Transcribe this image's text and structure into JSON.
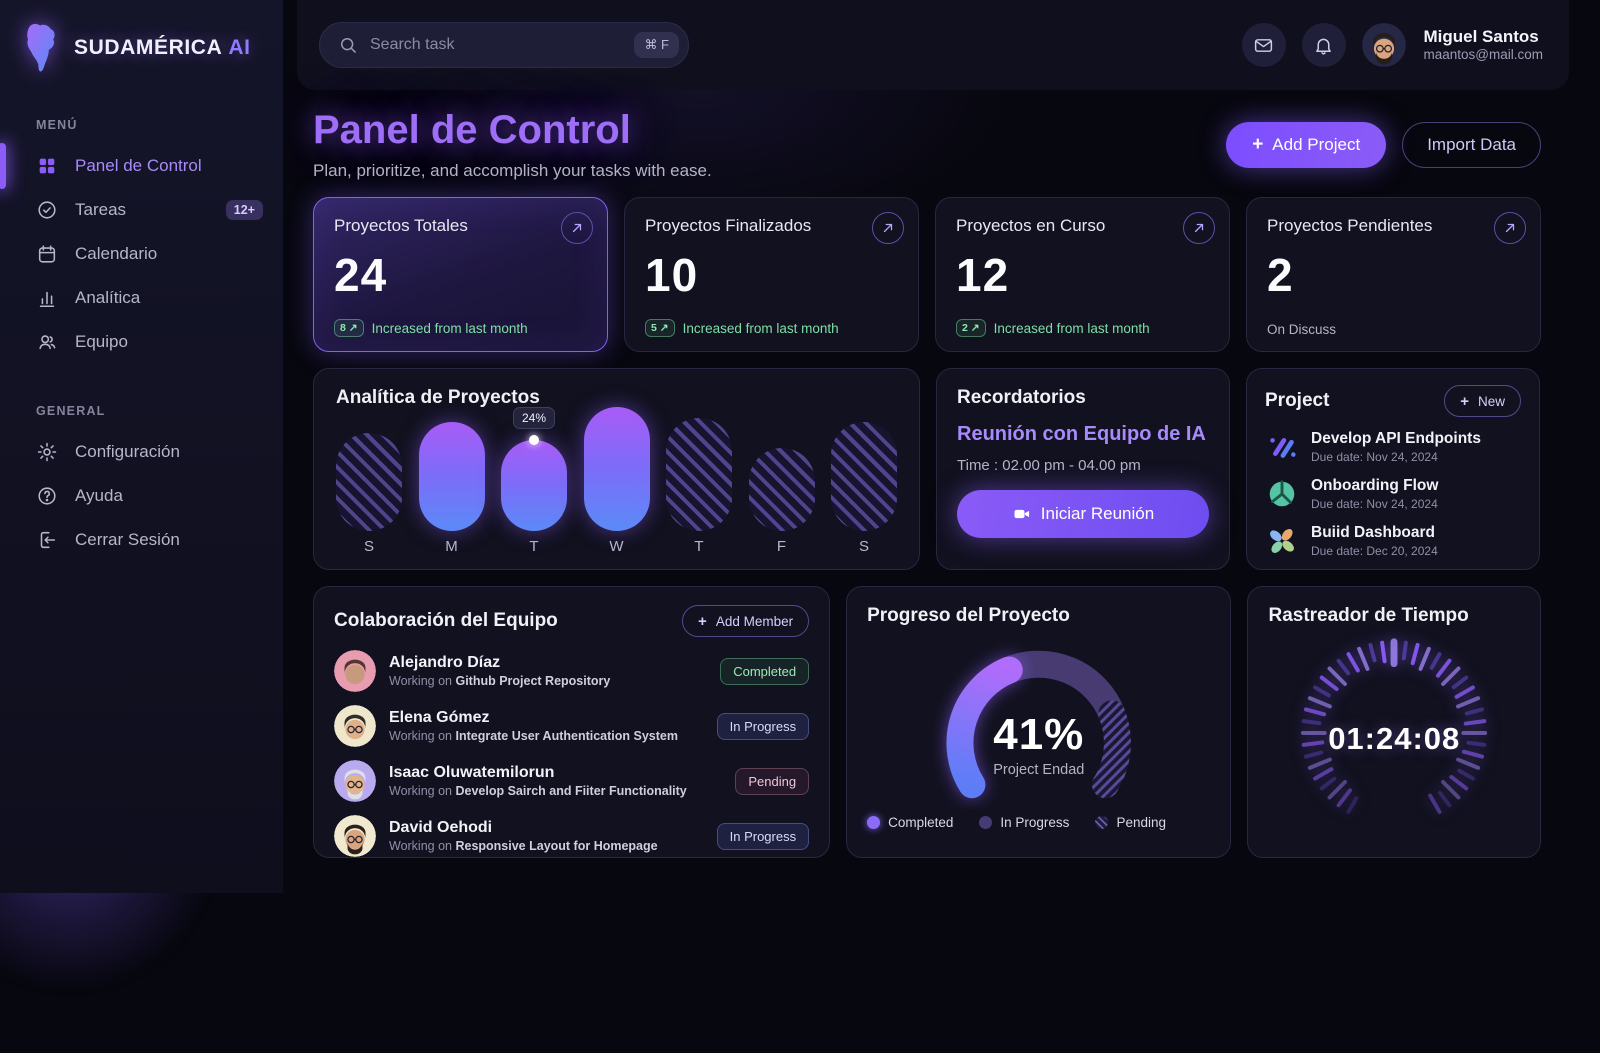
{
  "brand": {
    "name": "SUDAMÉRICA",
    "suffix": "AI"
  },
  "sidebar": {
    "menu_label": "MENÚ",
    "general_label": "GENERAL",
    "items": [
      {
        "label": "Panel de Control",
        "icon": "grid-icon",
        "active": true
      },
      {
        "label": "Tareas",
        "icon": "tasks-icon",
        "badge": "12+"
      },
      {
        "label": "Calendario",
        "icon": "calendar-icon"
      },
      {
        "label": "Analítica",
        "icon": "chart-icon"
      },
      {
        "label": "Equipo",
        "icon": "users-icon"
      }
    ],
    "general_items": [
      {
        "label": "Configuración",
        "icon": "gear-icon"
      },
      {
        "label": "Ayuda",
        "icon": "help-icon"
      },
      {
        "label": "Cerrar Sesión",
        "icon": "logout-icon"
      }
    ]
  },
  "topbar": {
    "search_placeholder": "Search task",
    "shortcut": "⌘ F",
    "user_name": "Miguel Santos",
    "user_email": "maantos@mail.com",
    "avatar": {
      "bg": "#262645",
      "skin": "#d9a47e",
      "hair": "#241d18",
      "beard": true,
      "glasses": true
    }
  },
  "header": {
    "title": "Panel de Control",
    "subtitle": "Plan, prioritize, and accomplish your tasks with ease.",
    "add_project": "Add Project",
    "import_data": "Import Data"
  },
  "stats": [
    {
      "title": "Proyectos Totales",
      "value": "24",
      "badge": "8 ↗",
      "note": "Increased from last month"
    },
    {
      "title": "Proyectos Finalizados",
      "value": "10",
      "badge": "5 ↗",
      "note": "Increased from last month"
    },
    {
      "title": "Proyectos en Curso",
      "value": "12",
      "badge": "2 ↗",
      "note": "Increased from last month"
    },
    {
      "title": "Proyectos Pendientes",
      "value": "2",
      "note": "On Discuss"
    }
  ],
  "analytics": {
    "title": "Analítica de Proyectos"
  },
  "reminders": {
    "title": "Recordatorios",
    "meeting": "Reunión con Equipo de IA",
    "time": "Time : 02.00 pm - 04.00 pm",
    "button": "Iniciar Reunión"
  },
  "projects": {
    "title": "Project",
    "new_button": "New",
    "items": [
      {
        "name": "Develop API Endpoints",
        "due": "Due date: Nov 24, 2024"
      },
      {
        "name": "Onboarding Flow",
        "due": "Due date: Nov 24, 2024"
      },
      {
        "name": "Buiid Dashboard",
        "due": "Due date: Dec 20, 2024"
      }
    ]
  },
  "team": {
    "title": "Colaboración del Equipo",
    "add_button": "Add Member",
    "working_prefix": "Working on ",
    "members": [
      {
        "name": "Alejandro Díaz",
        "task": "Github Project Repository",
        "status": "Completed",
        "avatar": {
          "bg": "#e89cb0",
          "skin": "#c79a7d",
          "hair": "#53382b",
          "beard": false,
          "glasses": false
        }
      },
      {
        "name": "Elena Gómez",
        "task": "Integrate User Authentication System",
        "status": "In Progress",
        "avatar": {
          "bg": "#efe7cc",
          "skin": "#e0b088",
          "hair": "#332d28",
          "beard": false,
          "glasses": true
        }
      },
      {
        "name": "Isaac Oluwatemilorun",
        "task": "Develop Sairch and Fiiter Functionality",
        "status": "Pending",
        "avatar": {
          "bg": "#b9aaf0",
          "skin": "#e3b389",
          "hair": "#dedee6",
          "beard": true,
          "glasses": true
        }
      },
      {
        "name": "David Oehodi",
        "task": "Responsive Layout for Homepage",
        "status": "In Progress",
        "avatar": {
          "bg": "#f0e8cf",
          "skin": "#d9a47e",
          "hair": "#2b211b",
          "beard": true,
          "glasses": true
        }
      }
    ]
  },
  "progress": {
    "title": "Progreso del Proyecto",
    "percent_label": "41%",
    "caption": "Project Endad",
    "legend": [
      "Completed",
      "In Progress",
      "Pending"
    ]
  },
  "tracker": {
    "title": "Rastreador de Tiempo",
    "time": "01:24:08"
  },
  "chart_data": [
    {
      "id": "weekly-analytics",
      "type": "bar",
      "title": "Analítica de Proyectos",
      "categories": [
        "S",
        "M",
        "T",
        "W",
        "T",
        "F",
        "S"
      ],
      "values": [
        26,
        29,
        24,
        33,
        30,
        22,
        29
      ],
      "unit": "%",
      "ylim": [
        0,
        35
      ],
      "bar_styles": [
        "hatched",
        "solid",
        "solid",
        "solid",
        "hatched",
        "hatched",
        "hatched"
      ],
      "tooltip": {
        "index": 2,
        "label": "24%"
      },
      "legend_position": "none"
    },
    {
      "id": "project-progress",
      "type": "donut",
      "center_label": "41%",
      "caption": "Project Endad",
      "segments": [
        {
          "name": "Completed",
          "value": 41,
          "style": "gradient"
        },
        {
          "name": "In Progress",
          "value": 37,
          "style": "solid"
        },
        {
          "name": "Pending",
          "value": 22,
          "style": "hatched"
        }
      ]
    }
  ],
  "colors": {
    "accent": "#8b5cf6",
    "accent_light": "#a78bfa",
    "bar_gradient_top": "#a85cf7",
    "bar_gradient_bottom": "#5b8af7",
    "success": "#7edfa6",
    "page_bg": "#07070f",
    "card_bg": "#11111f"
  }
}
